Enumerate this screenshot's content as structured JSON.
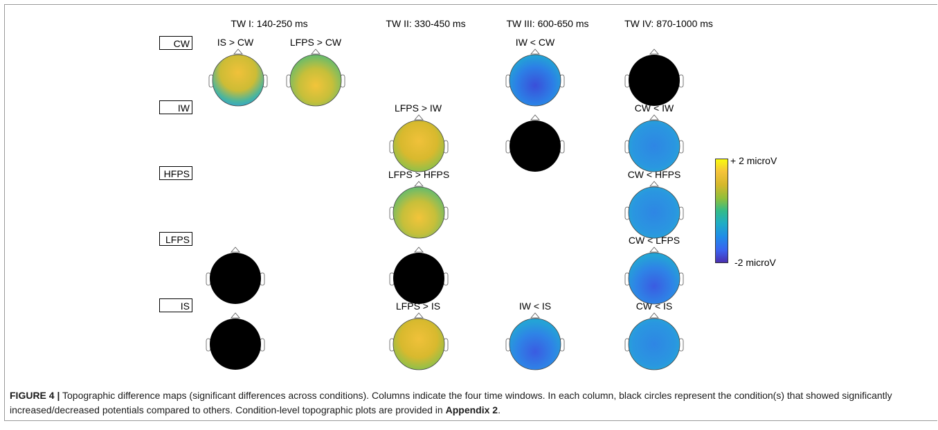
{
  "time_windows": [
    {
      "label": "TW I: 140-250 ms"
    },
    {
      "label": "TW II: 330-450 ms"
    },
    {
      "label": "TW III: 600-650 ms"
    },
    {
      "label": "TW IV: 870-1000 ms"
    }
  ],
  "conditions": [
    "CW",
    "IW",
    "HFPS",
    "LFPS",
    "IS"
  ],
  "comparisons": {
    "tw1_cw_a": "IS > CW",
    "tw1_cw_b": "LFPS > CW",
    "tw2_iw": "LFPS > IW",
    "tw2_hfps": "LFPS > HFPS",
    "tw2_is": "LFPS > IS",
    "tw3_cw": "IW < CW",
    "tw3_is": "IW < IS",
    "tw4_iw": "CW < IW",
    "tw4_hfps": "CW < HFPS",
    "tw4_lfps": "CW < LFPS",
    "tw4_is": "CW < IS"
  },
  "colorbar": {
    "max_label": "+ 2 microV",
    "min_label": "-2 microV",
    "colors": [
      "#f9fb0e",
      "#33bb89",
      "#4a2fb0"
    ]
  },
  "caption": {
    "figure_label": "FIGURE 4 |",
    "text": " Topographic difference maps (significant differences across conditions). Columns indicate the four time windows. In each column, black circles represent the condition(s) that showed significantly increased/decreased potentials compared to others. Condition-level topographic plots are provided in ",
    "appendix": "Appendix 2",
    "end": "."
  }
}
